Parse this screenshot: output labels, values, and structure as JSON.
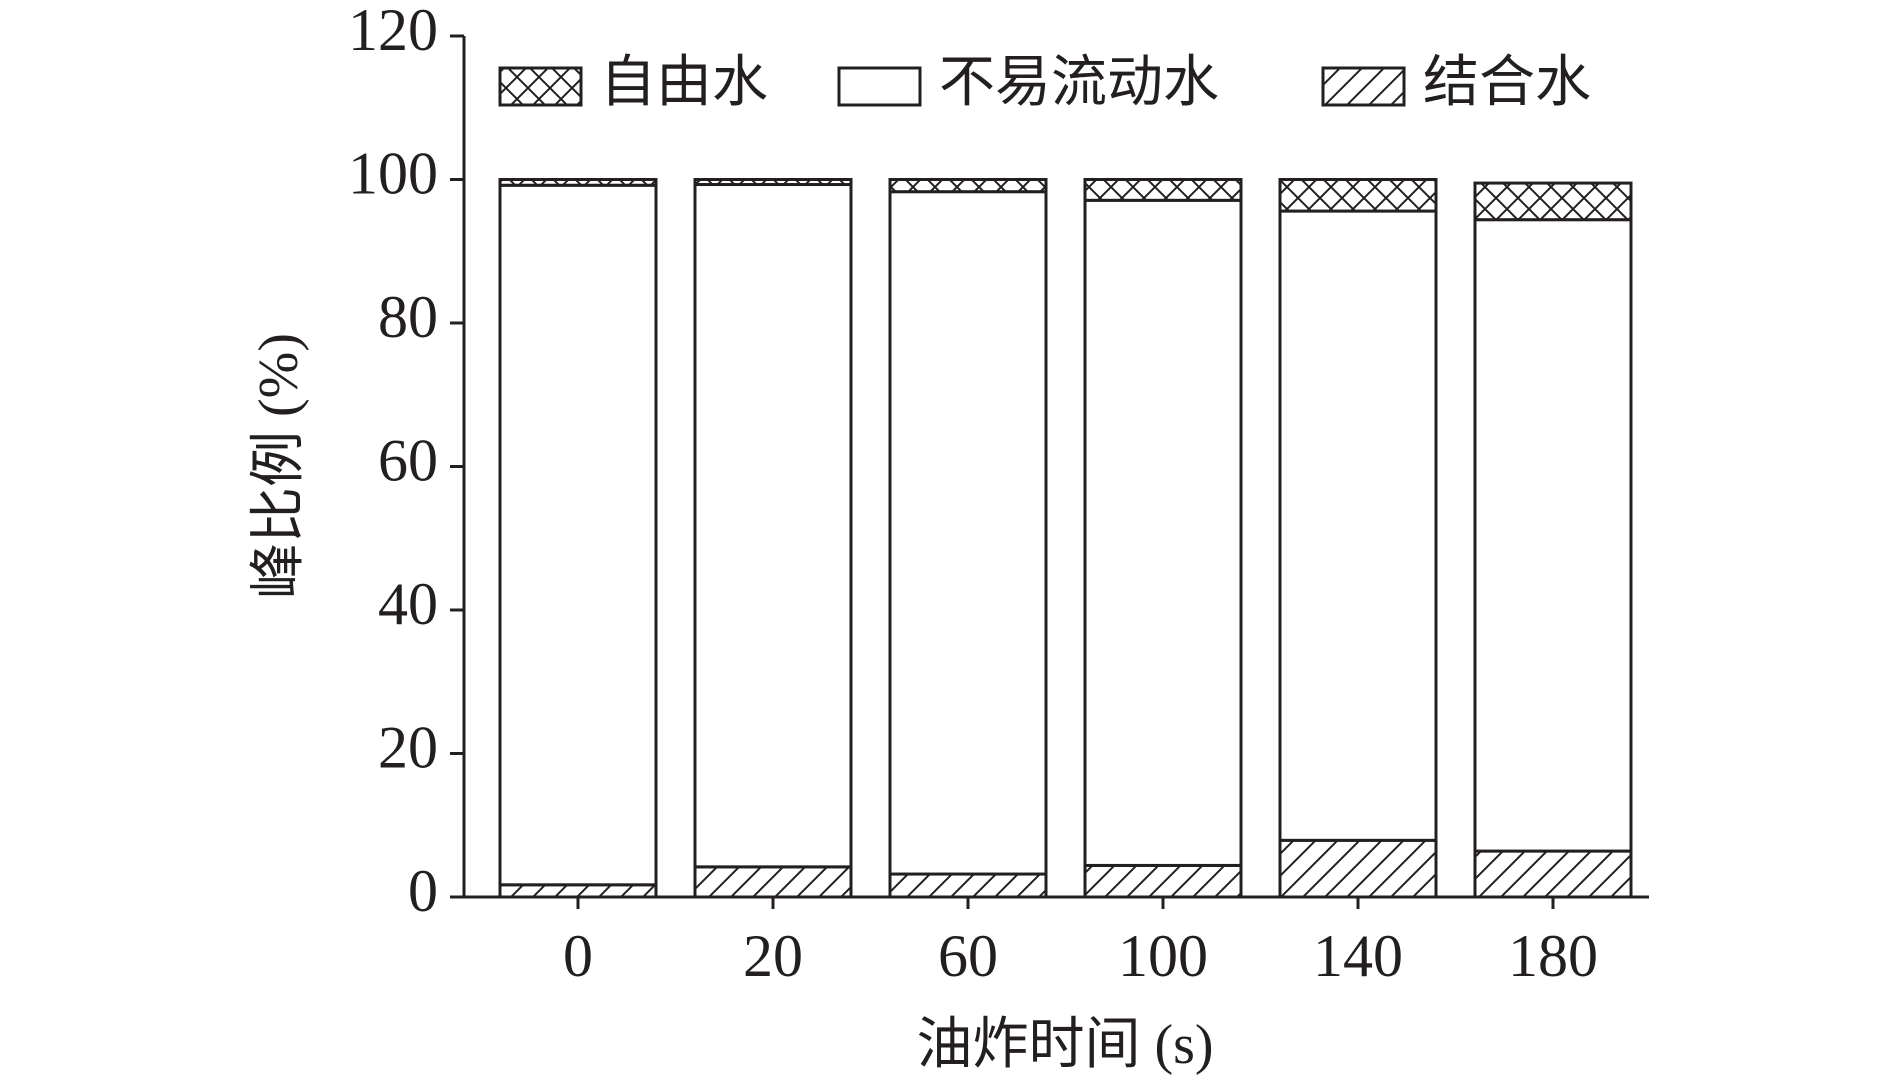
{
  "chart_data": {
    "type": "stacked_bar",
    "x_label": "油炸时间 (s)",
    "y_label": "峰比例 (%)",
    "categories": [
      "0",
      "20",
      "60",
      "100",
      "140",
      "180"
    ],
    "series": [
      {
        "name": "自由水",
        "pattern": "crosshatch",
        "values": [
          0.8,
          0.7,
          1.7,
          2.9,
          4.4,
          5.1
        ]
      },
      {
        "name": "不易流动水",
        "pattern": "none",
        "values": [
          97.5,
          95.1,
          95.1,
          92.7,
          87.7,
          88.0
        ]
      },
      {
        "name": "结合水",
        "pattern": "diagonal",
        "values": [
          1.7,
          4.2,
          3.2,
          4.4,
          7.9,
          6.4
        ]
      }
    ],
    "ylim": [
      0,
      120
    ],
    "yticks": [
      0,
      20,
      40,
      60,
      80,
      100,
      120
    ]
  }
}
